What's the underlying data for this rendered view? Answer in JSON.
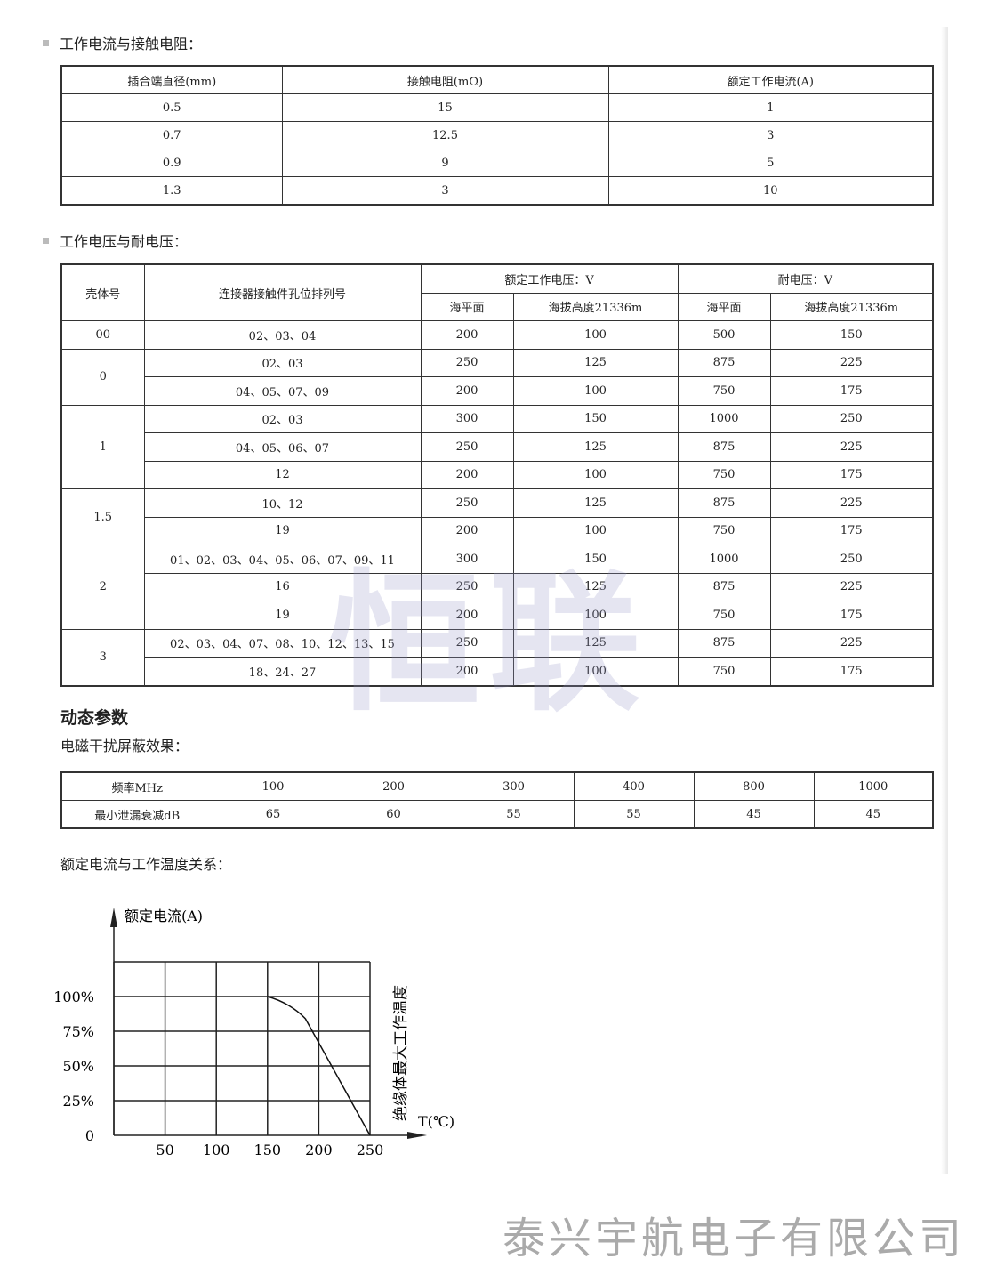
{
  "section1": {
    "title": "工作电流与接触电阻：",
    "headers": [
      "插合端直径(mm)",
      "接触电阻(mΩ)",
      "额定工作电流(A)"
    ],
    "rows": [
      [
        "0.5",
        "15",
        "1"
      ],
      [
        "0.7",
        "12.5",
        "3"
      ],
      [
        "0.9",
        "9",
        "5"
      ],
      [
        "1.3",
        "3",
        "10"
      ]
    ]
  },
  "section2": {
    "title": "工作电压与耐电压：",
    "headers": {
      "shell": "壳体号",
      "arrangement": "连接器接触件孔位排列号",
      "rated_voltage": "额定工作电压：V",
      "withstand_voltage": "耐电压：V",
      "sea_level": "海平面",
      "altitude": "海拔高度21336m"
    },
    "groups": [
      {
        "shell": "00",
        "rows": [
          [
            "02、03、04",
            "200",
            "100",
            "500",
            "150"
          ]
        ]
      },
      {
        "shell": "0",
        "rows": [
          [
            "02、03",
            "250",
            "125",
            "875",
            "225"
          ],
          [
            "04、05、07、09",
            "200",
            "100",
            "750",
            "175"
          ]
        ]
      },
      {
        "shell": "1",
        "rows": [
          [
            "02、03",
            "300",
            "150",
            "1000",
            "250"
          ],
          [
            "04、05、06、07",
            "250",
            "125",
            "875",
            "225"
          ],
          [
            "12",
            "200",
            "100",
            "750",
            "175"
          ]
        ]
      },
      {
        "shell": "1.5",
        "rows": [
          [
            "10、12",
            "250",
            "125",
            "875",
            "225"
          ],
          [
            "19",
            "200",
            "100",
            "750",
            "175"
          ]
        ]
      },
      {
        "shell": "2",
        "rows": [
          [
            "01、02、03、04、05、06、07、09、11",
            "300",
            "150",
            "1000",
            "250"
          ],
          [
            "16",
            "250",
            "125",
            "875",
            "225"
          ],
          [
            "19",
            "200",
            "100",
            "750",
            "175"
          ]
        ]
      },
      {
        "shell": "3",
        "rows": [
          [
            "02、03、04、07、08、10、12、13、15",
            "250",
            "125",
            "875",
            "225"
          ],
          [
            "18、24、27",
            "200",
            "100",
            "750",
            "175"
          ]
        ]
      }
    ]
  },
  "dynamic": {
    "title": "动态参数",
    "emi_title": "电磁干扰屏蔽效果：",
    "freq_label": "频率MHz",
    "freq": [
      "100",
      "200",
      "300",
      "400",
      "800",
      "1000"
    ],
    "atten_label": "最小泄漏衰减dB",
    "atten": [
      "65",
      "60",
      "55",
      "55",
      "45",
      "45"
    ]
  },
  "chart_title": "额定电流与工作温度关系：",
  "chart_data": {
    "type": "line",
    "ylabel": "额定电流(A)",
    "xlabel": "T(℃)",
    "annotation": "绝缘体最大工作温度",
    "x_ticks": [
      "50",
      "100",
      "150",
      "200",
      "250"
    ],
    "y_ticks": [
      "0",
      "25%",
      "50%",
      "75%",
      "100%"
    ],
    "xlim": [
      0,
      250
    ],
    "ylim": [
      0,
      125
    ],
    "grid": true,
    "x": [
      150,
      165,
      178,
      187,
      250
    ],
    "y": [
      100,
      97,
      91,
      84,
      0
    ]
  },
  "watermark": "恒联",
  "footer": "泰兴宇航电子有限公司"
}
